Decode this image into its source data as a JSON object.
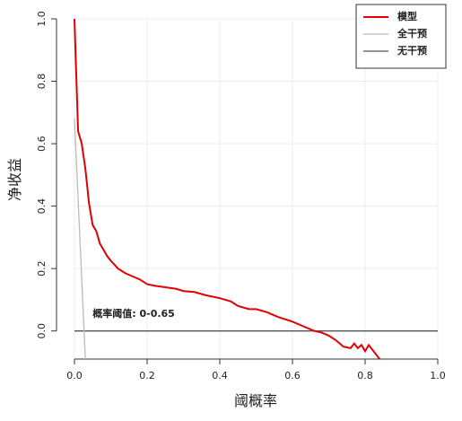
{
  "chart_data": {
    "type": "line",
    "xlabel": "阈概率",
    "ylabel": "净收益",
    "xlim": [
      0,
      1
    ],
    "ylim": [
      -0.09,
      1
    ],
    "xticks": [
      {
        "value": 0,
        "label": "0.0"
      },
      0.2,
      0.4,
      0.6,
      0.8,
      {
        "value": 1,
        "label": "1.0"
      }
    ],
    "yticks": [
      {
        "value": 0,
        "label": "0.0"
      },
      0.2,
      0.4,
      0.6,
      0.8,
      {
        "value": 1,
        "label": "1.0"
      }
    ],
    "grid": true,
    "legend": "top-right",
    "annotation": {
      "text": "概率阈值: 0-0.65",
      "x": 0.05,
      "y": 0.045
    },
    "series": [
      {
        "name": "模型",
        "color": "#e00000",
        "x": [
          0,
          0.01,
          0.02,
          0.03,
          0.04,
          0.05,
          0.06,
          0.07,
          0.08,
          0.09,
          0.1,
          0.12,
          0.14,
          0.16,
          0.18,
          0.2,
          0.22,
          0.25,
          0.28,
          0.3,
          0.33,
          0.36,
          0.4,
          0.43,
          0.45,
          0.48,
          0.5,
          0.53,
          0.56,
          0.6,
          0.63,
          0.66,
          0.68,
          0.7,
          0.72,
          0.74,
          0.76,
          0.77,
          0.78,
          0.79,
          0.8,
          0.81,
          0.82,
          0.84
        ],
        "values": [
          1.0,
          0.64,
          0.6,
          0.52,
          0.41,
          0.34,
          0.32,
          0.28,
          0.26,
          0.24,
          0.225,
          0.2,
          0.185,
          0.175,
          0.165,
          0.15,
          0.145,
          0.14,
          0.135,
          0.128,
          0.125,
          0.115,
          0.105,
          0.095,
          0.08,
          0.07,
          0.07,
          0.06,
          0.045,
          0.03,
          0.015,
          0.0,
          -0.005,
          -0.015,
          -0.03,
          -0.05,
          -0.055,
          -0.04,
          -0.055,
          -0.045,
          -0.065,
          -0.045,
          -0.06,
          -0.09
        ]
      },
      {
        "name": "全干预",
        "color": "#bbbbbb",
        "x": [
          0,
          0.03
        ],
        "values": [
          0.68,
          -0.09
        ]
      },
      {
        "name": "无干预",
        "color": "#555555",
        "x": [
          0,
          1
        ],
        "values": [
          0,
          0
        ]
      }
    ]
  }
}
